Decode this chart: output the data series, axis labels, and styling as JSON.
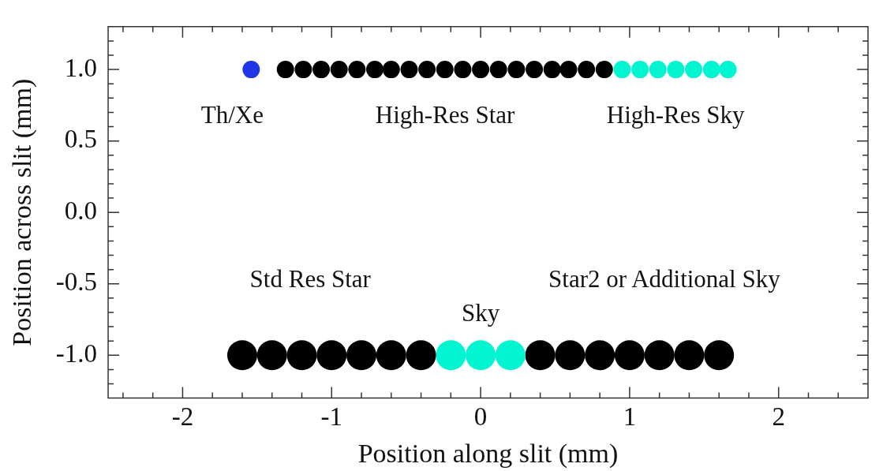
{
  "chart_data": {
    "type": "scatter",
    "xlabel": "Position along slit (mm)",
    "ylabel": "Position across slit (mm)",
    "xlim": [
      -2.5,
      2.6
    ],
    "ylim": [
      -1.3,
      1.3
    ],
    "xticks": [
      {
        "value": -2.4,
        "label": null
      },
      {
        "value": -2.2,
        "label": null
      },
      -2,
      {
        "value": -1.8,
        "label": null
      },
      {
        "value": -1.6,
        "label": null
      },
      {
        "value": -1.4,
        "label": null
      },
      {
        "value": -1.2,
        "label": null
      },
      -1,
      {
        "value": -0.8,
        "label": null
      },
      {
        "value": -0.6,
        "label": null
      },
      {
        "value": -0.4,
        "label": null
      },
      {
        "value": -0.2,
        "label": null
      },
      0,
      {
        "value": 0.2,
        "label": null
      },
      {
        "value": 0.4,
        "label": null
      },
      {
        "value": 0.6,
        "label": null
      },
      {
        "value": 0.8,
        "label": null
      },
      1,
      {
        "value": 1.2,
        "label": null
      },
      {
        "value": 1.4,
        "label": null
      },
      {
        "value": 1.6,
        "label": null
      },
      {
        "value": 1.8,
        "label": null
      },
      2,
      {
        "value": 2.2,
        "label": null
      },
      {
        "value": 2.4,
        "label": null
      }
    ],
    "yticks": [
      {
        "value": -1.2,
        "label": null
      },
      {
        "value": -1.1,
        "label": null
      },
      {
        "value": -1.0,
        "label": "-1.0"
      },
      {
        "value": -0.9,
        "label": null
      },
      {
        "value": -0.8,
        "label": null
      },
      {
        "value": -0.7,
        "label": null
      },
      {
        "value": -0.6,
        "label": null
      },
      {
        "value": -0.5,
        "label": "-0.5"
      },
      {
        "value": -0.4,
        "label": null
      },
      {
        "value": -0.3,
        "label": null
      },
      {
        "value": -0.2,
        "label": null
      },
      {
        "value": -0.1,
        "label": null
      },
      {
        "value": 0,
        "label": "0.0"
      },
      {
        "value": 0.1,
        "label": null
      },
      {
        "value": 0.2,
        "label": null
      },
      {
        "value": 0.3,
        "label": null
      },
      {
        "value": 0.4,
        "label": null
      },
      {
        "value": 0.5,
        "label": "0.5"
      },
      {
        "value": 0.6,
        "label": null
      },
      {
        "value": 0.7,
        "label": null
      },
      {
        "value": 0.8,
        "label": null
      },
      {
        "value": 0.9,
        "label": null
      },
      {
        "value": 1.0,
        "label": "1.0"
      },
      {
        "value": 1.1,
        "label": null
      },
      {
        "value": 1.2,
        "label": null
      }
    ],
    "grid": false,
    "legend": false,
    "marker": "circle",
    "series": [
      {
        "name": "Th/Xe",
        "color": "#1f35e8",
        "x": [
          -1.54
        ],
        "values": [
          1.0
        ]
      },
      {
        "name": "High-Res Star",
        "color": "#000000",
        "x": [
          -1.31,
          -1.19,
          -1.07,
          -0.95,
          -0.83,
          -0.71,
          -0.6,
          -0.48,
          -0.36,
          -0.24,
          -0.12,
          0.0,
          0.12,
          0.24,
          0.36,
          0.48,
          0.59,
          0.71,
          0.83
        ],
        "values": [
          1,
          1,
          1,
          1,
          1,
          1,
          1,
          1,
          1,
          1,
          1,
          1,
          1,
          1,
          1,
          1,
          1,
          1,
          1
        ]
      },
      {
        "name": "High-Res Sky",
        "color": "#00f5d0",
        "x": [
          0.95,
          1.07,
          1.19,
          1.31,
          1.43,
          1.55,
          1.66
        ],
        "values": [
          1,
          1,
          1,
          1,
          1,
          1,
          1
        ]
      },
      {
        "name": "Std Res Star",
        "color": "#000000",
        "x": [
          -1.6,
          -1.4,
          -1.2,
          -1.0,
          -0.8,
          -0.6,
          -0.4
        ],
        "values": [
          -1,
          -1,
          -1,
          -1,
          -1,
          -1,
          -1
        ]
      },
      {
        "name": "Sky",
        "color": "#00f5d0",
        "x": [
          -0.2,
          0.0,
          0.2
        ],
        "values": [
          -1,
          -1,
          -1
        ]
      },
      {
        "name": "Star2 or Additional Sky",
        "color": "#000000",
        "x": [
          0.4,
          0.6,
          0.8,
          1.0,
          1.2,
          1.4,
          1.6
        ],
        "values": [
          -1,
          -1,
          -1,
          -1,
          -1,
          -1,
          -1
        ]
      }
    ]
  }
}
